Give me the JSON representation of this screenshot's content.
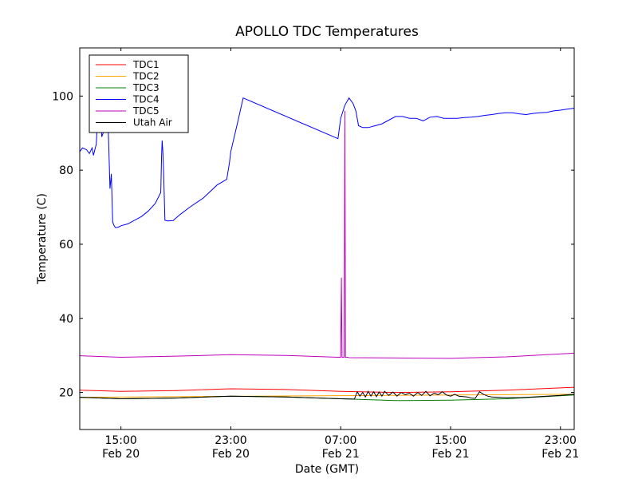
{
  "chart_data": {
    "type": "line",
    "title": "APOLLO TDC Temperatures",
    "xlabel": "Date (GMT)",
    "ylabel": "Temperature (C)",
    "xlim": [
      12.0,
      48.0
    ],
    "ylim": [
      10,
      113
    ],
    "x_unit": "hours since Feb 20 00:00 GMT",
    "yticks": [
      20,
      40,
      60,
      80,
      100
    ],
    "xticks": [
      {
        "x": 15,
        "time": "15:00",
        "date": "Feb 20"
      },
      {
        "x": 23,
        "time": "23:00",
        "date": "Feb 20"
      },
      {
        "x": 31,
        "time": "07:00",
        "date": "Feb 21"
      },
      {
        "x": 39,
        "time": "15:00",
        "date": "Feb 21"
      },
      {
        "x": 47,
        "time": "23:00",
        "date": "Feb 21"
      }
    ],
    "grid": false,
    "legend_position": "top-left",
    "series": [
      {
        "name": "TDC1",
        "color": "#ff0000",
        "x": [
          12.0,
          15.0,
          19.0,
          23.0,
          27.0,
          31.0,
          35.0,
          39.0,
          43.0,
          48.0
        ],
        "y": [
          20.6,
          20.3,
          20.5,
          21.0,
          20.8,
          20.3,
          20.0,
          20.2,
          20.6,
          21.4
        ]
      },
      {
        "name": "TDC2",
        "color": "#ffa500",
        "x": [
          12.0,
          48.0
        ],
        "y": [
          18.7,
          19.5
        ]
      },
      {
        "name": "TDC3",
        "color": "#008000",
        "x": [
          12.0,
          15.0,
          19.0,
          23.0,
          27.0,
          31.0,
          35.0,
          39.0,
          43.0,
          48.0
        ],
        "y": [
          18.7,
          18.3,
          18.5,
          19.0,
          18.8,
          18.3,
          17.8,
          17.9,
          18.3,
          19.3
        ]
      },
      {
        "name": "TDC4",
        "color": "#0000ff",
        "x": [
          12.0,
          12.2,
          12.5,
          12.7,
          12.9,
          13.0,
          13.1,
          13.2,
          13.3,
          13.4,
          13.5,
          13.6,
          13.7,
          13.8,
          13.9,
          14.0,
          14.1,
          14.2,
          14.25,
          14.3,
          14.4,
          14.5,
          14.6,
          14.8,
          15.0,
          15.5,
          16.0,
          16.5,
          17.0,
          17.5,
          17.9,
          17.95,
          18.0,
          18.05,
          18.1,
          18.2,
          18.4,
          18.8,
          19.3,
          20.0,
          21.0,
          22.0,
          22.7,
          22.9,
          23.0,
          23.5,
          23.9,
          30.8,
          31.0,
          31.3,
          31.6,
          31.9,
          32.1,
          32.3,
          32.6,
          33.0,
          33.5,
          34.0,
          34.5,
          35.0,
          35.5,
          36.0,
          36.5,
          37.0,
          37.5,
          38.0,
          38.5,
          39.0,
          39.5,
          40.0,
          40.5,
          41.0,
          41.5,
          42.0,
          42.5,
          43.0,
          43.5,
          44.0,
          44.5,
          45.0,
          45.5,
          46.0,
          46.5,
          47.0,
          47.5,
          48.0
        ],
        "y": [
          85,
          86,
          85.5,
          84.5,
          86,
          84,
          85.5,
          87,
          94,
          95,
          96,
          89,
          90,
          93,
          97,
          98,
          88,
          75,
          77,
          79,
          66,
          65,
          64.5,
          64.6,
          65,
          65.5,
          66.5,
          67.5,
          69,
          71,
          74,
          83,
          88,
          85,
          80,
          66.5,
          66.3,
          66.4,
          68,
          70,
          72.5,
          76,
          77.5,
          82,
          85,
          93,
          99.5,
          88.5,
          94,
          97.5,
          99.5,
          98,
          96,
          92,
          91.5,
          91.5,
          92,
          92.5,
          93.5,
          94.5,
          94.5,
          94,
          94,
          93.3,
          94.3,
          94.5,
          94,
          94,
          94,
          94.2,
          94.3,
          94.5,
          94.8,
          95,
          95.3,
          95.5,
          95.5,
          95.2,
          95,
          95.3,
          95.5,
          95.6,
          96,
          96.2,
          96.5,
          96.7
        ]
      },
      {
        "name": "TDC5",
        "color": "#bf00bf",
        "x": [
          12.0,
          15.0,
          19.0,
          23.0,
          27.0,
          30.8,
          31.0,
          31.05,
          31.1,
          31.15,
          31.2,
          31.25,
          31.3,
          31.35,
          31.4,
          31.45,
          31.5,
          31.6,
          35.0,
          39.0,
          43.0,
          48.0
        ],
        "y": [
          29.9,
          29.5,
          29.8,
          30.2,
          30.0,
          29.5,
          29.5,
          51,
          29.5,
          29.5,
          29.5,
          29.5,
          96,
          29.5,
          29.5,
          29.5,
          29.5,
          29.4,
          29.3,
          29.2,
          29.6,
          30.6
        ]
      },
      {
        "name": "Utah Air",
        "color": "#000000",
        "x": [
          12.0,
          15.0,
          19.0,
          23.0,
          27.0,
          31.0,
          32.0,
          32.2,
          32.4,
          32.6,
          32.8,
          33.0,
          33.2,
          33.4,
          33.6,
          33.8,
          34.0,
          34.2,
          34.5,
          34.8,
          35.1,
          35.4,
          35.7,
          36.0,
          36.3,
          36.6,
          36.9,
          37.2,
          37.5,
          37.8,
          38.1,
          38.4,
          38.7,
          39.0,
          39.3,
          39.6,
          39.9,
          40.2,
          40.5,
          40.8,
          41.1,
          41.4,
          41.7,
          42.0,
          43.0,
          44.0,
          45.0,
          46.0,
          47.0,
          48.0
        ],
        "y": [
          18.7,
          18.3,
          18.5,
          19.0,
          18.8,
          18.3,
          18.2,
          20.2,
          19.0,
          20.0,
          18.8,
          20.3,
          19.0,
          20.2,
          18.9,
          20.1,
          19.0,
          20.3,
          19.2,
          20.1,
          19.0,
          20.0,
          19.4,
          19.8,
          19.0,
          20.0,
          19.2,
          20.3,
          19.1,
          19.8,
          19.4,
          20.2,
          19.3,
          19.0,
          19.5,
          19.0,
          18.9,
          18.8,
          18.5,
          18.4,
          20.2,
          19.5,
          19.0,
          18.8,
          18.6,
          18.6,
          18.8,
          19.0,
          19.2,
          19.5
        ]
      }
    ]
  }
}
